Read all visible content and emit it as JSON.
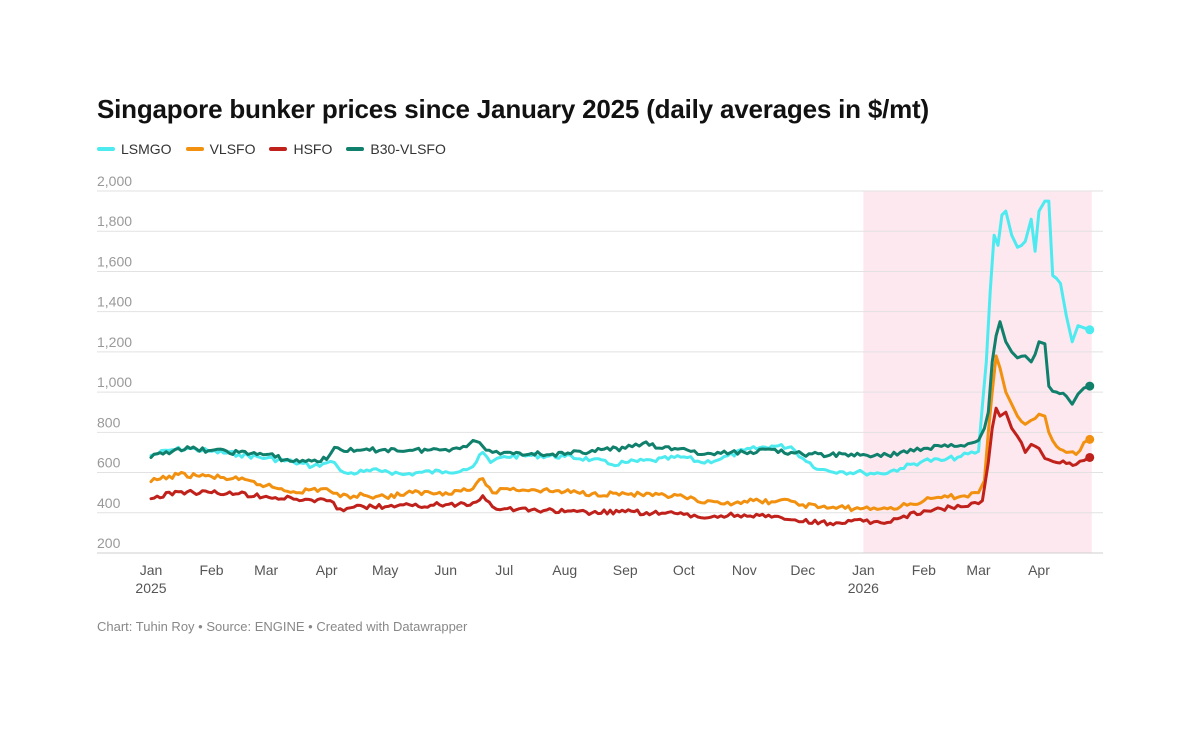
{
  "chart_data": {
    "type": "line",
    "title": "Singapore bunker prices since January 2025 (daily averages in $/mt)",
    "footer": "Chart: Tuhin Roy • Source: ENGINE • Created with Datawrapper",
    "ylim": [
      200,
      2000
    ],
    "yticks": [
      "2,000",
      "1,800",
      "1,600",
      "1,400",
      "1,200",
      "1,000",
      "800",
      "600",
      "400",
      "200"
    ],
    "ytick_values": [
      2000,
      1800,
      1600,
      1400,
      1200,
      1000,
      800,
      600,
      400,
      200
    ],
    "xlim": [
      "2025-01-01",
      "2026-05-01"
    ],
    "xticks": [
      {
        "date": "2025-01-01",
        "label": "Jan",
        "sub": "2025"
      },
      {
        "date": "2025-02-01",
        "label": "Feb"
      },
      {
        "date": "2025-03-01",
        "label": "Mar"
      },
      {
        "date": "2025-04-01",
        "label": "Apr"
      },
      {
        "date": "2025-05-01",
        "label": "May"
      },
      {
        "date": "2025-06-01",
        "label": "Jun"
      },
      {
        "date": "2025-07-01",
        "label": "Jul"
      },
      {
        "date": "2025-08-01",
        "label": "Aug"
      },
      {
        "date": "2025-09-01",
        "label": "Sep"
      },
      {
        "date": "2025-10-01",
        "label": "Oct"
      },
      {
        "date": "2025-11-01",
        "label": "Nov"
      },
      {
        "date": "2025-12-01",
        "label": "Dec"
      },
      {
        "date": "2026-01-01",
        "label": "Jan",
        "sub": "2026"
      },
      {
        "date": "2026-02-01",
        "label": "Feb"
      },
      {
        "date": "2026-03-01",
        "label": "Mar"
      },
      {
        "date": "2026-04-01",
        "label": "Apr"
      }
    ],
    "highlight_range": [
      "2026-01-01",
      "2026-04-28"
    ],
    "highlight_color": "#fde8f0",
    "grid": true,
    "legend_position": "top-left",
    "series": [
      {
        "name": "LSMGO",
        "color": "#4deaf0",
        "points": [
          [
            "2025-01-01",
            685
          ],
          [
            "2025-01-10",
            710
          ],
          [
            "2025-01-20",
            720
          ],
          [
            "2025-02-01",
            705
          ],
          [
            "2025-02-15",
            690
          ],
          [
            "2025-03-01",
            672
          ],
          [
            "2025-03-15",
            652
          ],
          [
            "2025-03-25",
            632
          ],
          [
            "2025-04-01",
            648
          ],
          [
            "2025-04-05",
            650
          ],
          [
            "2025-04-08",
            610
          ],
          [
            "2025-04-12",
            595
          ],
          [
            "2025-04-20",
            605
          ],
          [
            "2025-05-01",
            610
          ],
          [
            "2025-05-10",
            590
          ],
          [
            "2025-05-20",
            602
          ],
          [
            "2025-06-01",
            605
          ],
          [
            "2025-06-10",
            615
          ],
          [
            "2025-06-15",
            630
          ],
          [
            "2025-06-20",
            700
          ],
          [
            "2025-06-24",
            650
          ],
          [
            "2025-07-01",
            680
          ],
          [
            "2025-07-15",
            685
          ],
          [
            "2025-08-01",
            680
          ],
          [
            "2025-08-15",
            665
          ],
          [
            "2025-08-25",
            640
          ],
          [
            "2025-09-01",
            650
          ],
          [
            "2025-09-15",
            660
          ],
          [
            "2025-10-01",
            678
          ],
          [
            "2025-10-10",
            650
          ],
          [
            "2025-10-20",
            668
          ],
          [
            "2025-11-01",
            710
          ],
          [
            "2025-11-15",
            732
          ],
          [
            "2025-11-25",
            728
          ],
          [
            "2025-12-01",
            670
          ],
          [
            "2025-12-10",
            615
          ],
          [
            "2025-12-20",
            605
          ],
          [
            "2026-01-01",
            600
          ],
          [
            "2026-01-10",
            595
          ],
          [
            "2026-01-20",
            620
          ],
          [
            "2026-02-01",
            660
          ],
          [
            "2026-02-10",
            660
          ],
          [
            "2026-02-20",
            680
          ],
          [
            "2026-03-01",
            705
          ],
          [
            "2026-03-05",
            1150
          ],
          [
            "2026-03-07",
            1500
          ],
          [
            "2026-03-09",
            1780
          ],
          [
            "2026-03-11",
            1730
          ],
          [
            "2026-03-13",
            1880
          ],
          [
            "2026-03-15",
            1900
          ],
          [
            "2026-03-18",
            1780
          ],
          [
            "2026-03-21",
            1720
          ],
          [
            "2026-03-25",
            1750
          ],
          [
            "2026-03-28",
            1860
          ],
          [
            "2026-03-30",
            1700
          ],
          [
            "2026-04-01",
            1900
          ],
          [
            "2026-04-04",
            1950
          ],
          [
            "2026-04-06",
            1950
          ],
          [
            "2026-04-08",
            1580
          ],
          [
            "2026-04-12",
            1540
          ],
          [
            "2026-04-15",
            1380
          ],
          [
            "2026-04-18",
            1250
          ],
          [
            "2026-04-21",
            1330
          ],
          [
            "2026-04-24",
            1320
          ],
          [
            "2026-04-27",
            1310
          ]
        ]
      },
      {
        "name": "VLSFO",
        "color": "#f2900f",
        "points": [
          [
            "2025-01-01",
            555
          ],
          [
            "2025-01-15",
            590
          ],
          [
            "2025-02-01",
            580
          ],
          [
            "2025-02-15",
            565
          ],
          [
            "2025-03-01",
            535
          ],
          [
            "2025-03-15",
            505
          ],
          [
            "2025-04-01",
            520
          ],
          [
            "2025-04-08",
            480
          ],
          [
            "2025-04-20",
            488
          ],
          [
            "2025-05-01",
            480
          ],
          [
            "2025-05-15",
            500
          ],
          [
            "2025-06-01",
            500
          ],
          [
            "2025-06-15",
            520
          ],
          [
            "2025-06-20",
            570
          ],
          [
            "2025-06-25",
            500
          ],
          [
            "2025-07-01",
            520
          ],
          [
            "2025-07-15",
            515
          ],
          [
            "2025-08-01",
            505
          ],
          [
            "2025-08-15",
            495
          ],
          [
            "2025-09-01",
            495
          ],
          [
            "2025-09-15",
            485
          ],
          [
            "2025-10-01",
            480
          ],
          [
            "2025-10-10",
            450
          ],
          [
            "2025-10-20",
            445
          ],
          [
            "2025-11-01",
            458
          ],
          [
            "2025-11-15",
            455
          ],
          [
            "2025-11-25",
            458
          ],
          [
            "2025-12-01",
            440
          ],
          [
            "2025-12-15",
            425
          ],
          [
            "2026-01-01",
            422
          ],
          [
            "2026-01-10",
            420
          ],
          [
            "2026-01-20",
            430
          ],
          [
            "2026-02-01",
            460
          ],
          [
            "2026-02-10",
            475
          ],
          [
            "2026-02-20",
            482
          ],
          [
            "2026-03-01",
            500
          ],
          [
            "2026-03-04",
            560
          ],
          [
            "2026-03-06",
            800
          ],
          [
            "2026-03-08",
            1000
          ],
          [
            "2026-03-10",
            1180
          ],
          [
            "2026-03-12",
            1120
          ],
          [
            "2026-03-15",
            1000
          ],
          [
            "2026-03-18",
            940
          ],
          [
            "2026-03-21",
            880
          ],
          [
            "2026-03-25",
            840
          ],
          [
            "2026-03-28",
            860
          ],
          [
            "2026-04-01",
            890
          ],
          [
            "2026-04-04",
            880
          ],
          [
            "2026-04-06",
            800
          ],
          [
            "2026-04-10",
            730
          ],
          [
            "2026-04-15",
            700
          ],
          [
            "2026-04-20",
            690
          ],
          [
            "2026-04-24",
            750
          ],
          [
            "2026-04-27",
            765
          ]
        ]
      },
      {
        "name": "HSFO",
        "color": "#c0211b",
        "points": [
          [
            "2025-01-01",
            470
          ],
          [
            "2025-01-15",
            505
          ],
          [
            "2025-02-01",
            500
          ],
          [
            "2025-02-15",
            495
          ],
          [
            "2025-03-01",
            482
          ],
          [
            "2025-03-15",
            468
          ],
          [
            "2025-04-01",
            460
          ],
          [
            "2025-04-08",
            420
          ],
          [
            "2025-04-20",
            430
          ],
          [
            "2025-05-01",
            430
          ],
          [
            "2025-05-15",
            435
          ],
          [
            "2025-06-01",
            440
          ],
          [
            "2025-06-15",
            450
          ],
          [
            "2025-06-20",
            485
          ],
          [
            "2025-06-25",
            430
          ],
          [
            "2025-07-01",
            420
          ],
          [
            "2025-07-15",
            415
          ],
          [
            "2025-08-01",
            405
          ],
          [
            "2025-08-15",
            400
          ],
          [
            "2025-09-01",
            405
          ],
          [
            "2025-09-15",
            398
          ],
          [
            "2025-10-01",
            392
          ],
          [
            "2025-10-10",
            375
          ],
          [
            "2025-10-20",
            385
          ],
          [
            "2025-11-01",
            390
          ],
          [
            "2025-11-15",
            378
          ],
          [
            "2025-11-25",
            365
          ],
          [
            "2025-12-01",
            355
          ],
          [
            "2025-12-15",
            348
          ],
          [
            "2026-01-01",
            358
          ],
          [
            "2026-01-10",
            350
          ],
          [
            "2026-01-20",
            375
          ],
          [
            "2026-02-01",
            410
          ],
          [
            "2026-02-10",
            420
          ],
          [
            "2026-02-20",
            430
          ],
          [
            "2026-03-01",
            445
          ],
          [
            "2026-03-03",
            460
          ],
          [
            "2026-03-06",
            650
          ],
          [
            "2026-03-08",
            820
          ],
          [
            "2026-03-10",
            920
          ],
          [
            "2026-03-12",
            880
          ],
          [
            "2026-03-15",
            900
          ],
          [
            "2026-03-18",
            820
          ],
          [
            "2026-03-21",
            780
          ],
          [
            "2026-03-25",
            700
          ],
          [
            "2026-03-28",
            740
          ],
          [
            "2026-04-01",
            720
          ],
          [
            "2026-04-04",
            670
          ],
          [
            "2026-04-10",
            650
          ],
          [
            "2026-04-15",
            645
          ],
          [
            "2026-04-20",
            640
          ],
          [
            "2026-04-24",
            660
          ],
          [
            "2026-04-27",
            675
          ]
        ]
      },
      {
        "name": "B30-VLSFO",
        "color": "#10806c",
        "points": [
          [
            "2025-01-01",
            675
          ],
          [
            "2025-01-15",
            720
          ],
          [
            "2025-02-01",
            710
          ],
          [
            "2025-02-15",
            700
          ],
          [
            "2025-03-01",
            690
          ],
          [
            "2025-03-15",
            655
          ],
          [
            "2025-04-01",
            665
          ],
          [
            "2025-04-05",
            725
          ],
          [
            "2025-04-15",
            705
          ],
          [
            "2025-05-01",
            715
          ],
          [
            "2025-05-15",
            710
          ],
          [
            "2025-06-01",
            715
          ],
          [
            "2025-06-10",
            730
          ],
          [
            "2025-06-15",
            760
          ],
          [
            "2025-06-25",
            700
          ],
          [
            "2025-07-01",
            700
          ],
          [
            "2025-07-15",
            695
          ],
          [
            "2025-08-01",
            690
          ],
          [
            "2025-08-15",
            710
          ],
          [
            "2025-09-01",
            720
          ],
          [
            "2025-09-10",
            745
          ],
          [
            "2025-09-20",
            720
          ],
          [
            "2025-10-01",
            720
          ],
          [
            "2025-10-10",
            690
          ],
          [
            "2025-10-20",
            695
          ],
          [
            "2025-11-01",
            700
          ],
          [
            "2025-11-15",
            715
          ],
          [
            "2025-11-25",
            700
          ],
          [
            "2025-12-01",
            690
          ],
          [
            "2025-12-15",
            688
          ],
          [
            "2026-01-01",
            690
          ],
          [
            "2026-01-10",
            680
          ],
          [
            "2026-01-20",
            700
          ],
          [
            "2026-02-01",
            720
          ],
          [
            "2026-02-10",
            730
          ],
          [
            "2026-02-20",
            735
          ],
          [
            "2026-03-01",
            760
          ],
          [
            "2026-03-04",
            820
          ],
          [
            "2026-03-06",
            900
          ],
          [
            "2026-03-08",
            1150
          ],
          [
            "2026-03-10",
            1280
          ],
          [
            "2026-03-12",
            1350
          ],
          [
            "2026-03-15",
            1250
          ],
          [
            "2026-03-18",
            1200
          ],
          [
            "2026-03-21",
            1170
          ],
          [
            "2026-03-25",
            1180
          ],
          [
            "2026-03-28",
            1150
          ],
          [
            "2026-04-01",
            1250
          ],
          [
            "2026-04-04",
            1240
          ],
          [
            "2026-04-06",
            1030
          ],
          [
            "2026-04-10",
            1000
          ],
          [
            "2026-04-15",
            980
          ],
          [
            "2026-04-18",
            940
          ],
          [
            "2026-04-21",
            990
          ],
          [
            "2026-04-24",
            1020
          ],
          [
            "2026-04-27",
            1030
          ]
        ]
      }
    ]
  }
}
